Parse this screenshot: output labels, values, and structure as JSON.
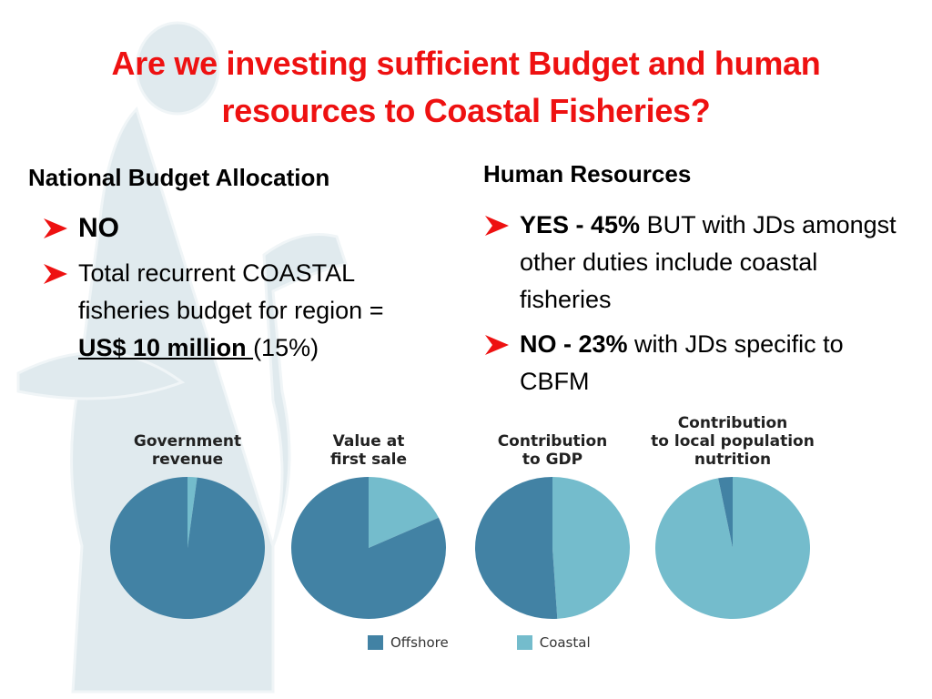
{
  "slide": {
    "title_line1": "Are we investing sufficient Budget and human",
    "title_line2": "resources to Coastal Fisheries?"
  },
  "left": {
    "heading": "National Budget Allocation",
    "bullet1": "NO",
    "bullet2_text": "Total recurrent COASTAL fisheries budget for region =",
    "bullet2_amount": "US$ 10 million ",
    "bullet2_pct": "(15%)"
  },
  "right": {
    "heading": "Human Resources",
    "bullet1_bold": "YES - 45%",
    "bullet1_text": " BUT with JDs amongst other duties include coastal fisheries",
    "bullet2_bold": "NO - 23%",
    "bullet2_text": " with JDs specific to CBFM"
  },
  "colors": {
    "title": "#ee1111",
    "offshore": "#4282a4",
    "coastal": "#74bccc",
    "arrow": "#ee1111"
  },
  "legend": {
    "offshore": "Offshore",
    "coastal": "Coastal"
  },
  "chart_data": [
    {
      "type": "pie",
      "title": "Government revenue",
      "title_lines": [
        "Government",
        "revenue"
      ],
      "categories": [
        "Offshore",
        "Coastal"
      ],
      "values": [
        98,
        2
      ]
    },
    {
      "type": "pie",
      "title": "Value at first sale",
      "title_lines": [
        "Value at",
        "first sale"
      ],
      "categories": [
        "Offshore",
        "Coastal"
      ],
      "values": [
        82,
        18
      ]
    },
    {
      "type": "pie",
      "title": "Contribution to GDP",
      "title_lines": [
        "Contribution",
        "to GDP"
      ],
      "categories": [
        "Offshore",
        "Coastal"
      ],
      "values": [
        51,
        49
      ]
    },
    {
      "type": "pie",
      "title": "Contribution to local population nutrition",
      "title_lines": [
        "Contribution",
        "to local population",
        "nutrition"
      ],
      "categories": [
        "Offshore",
        "Coastal"
      ],
      "values": [
        3,
        97
      ]
    }
  ]
}
